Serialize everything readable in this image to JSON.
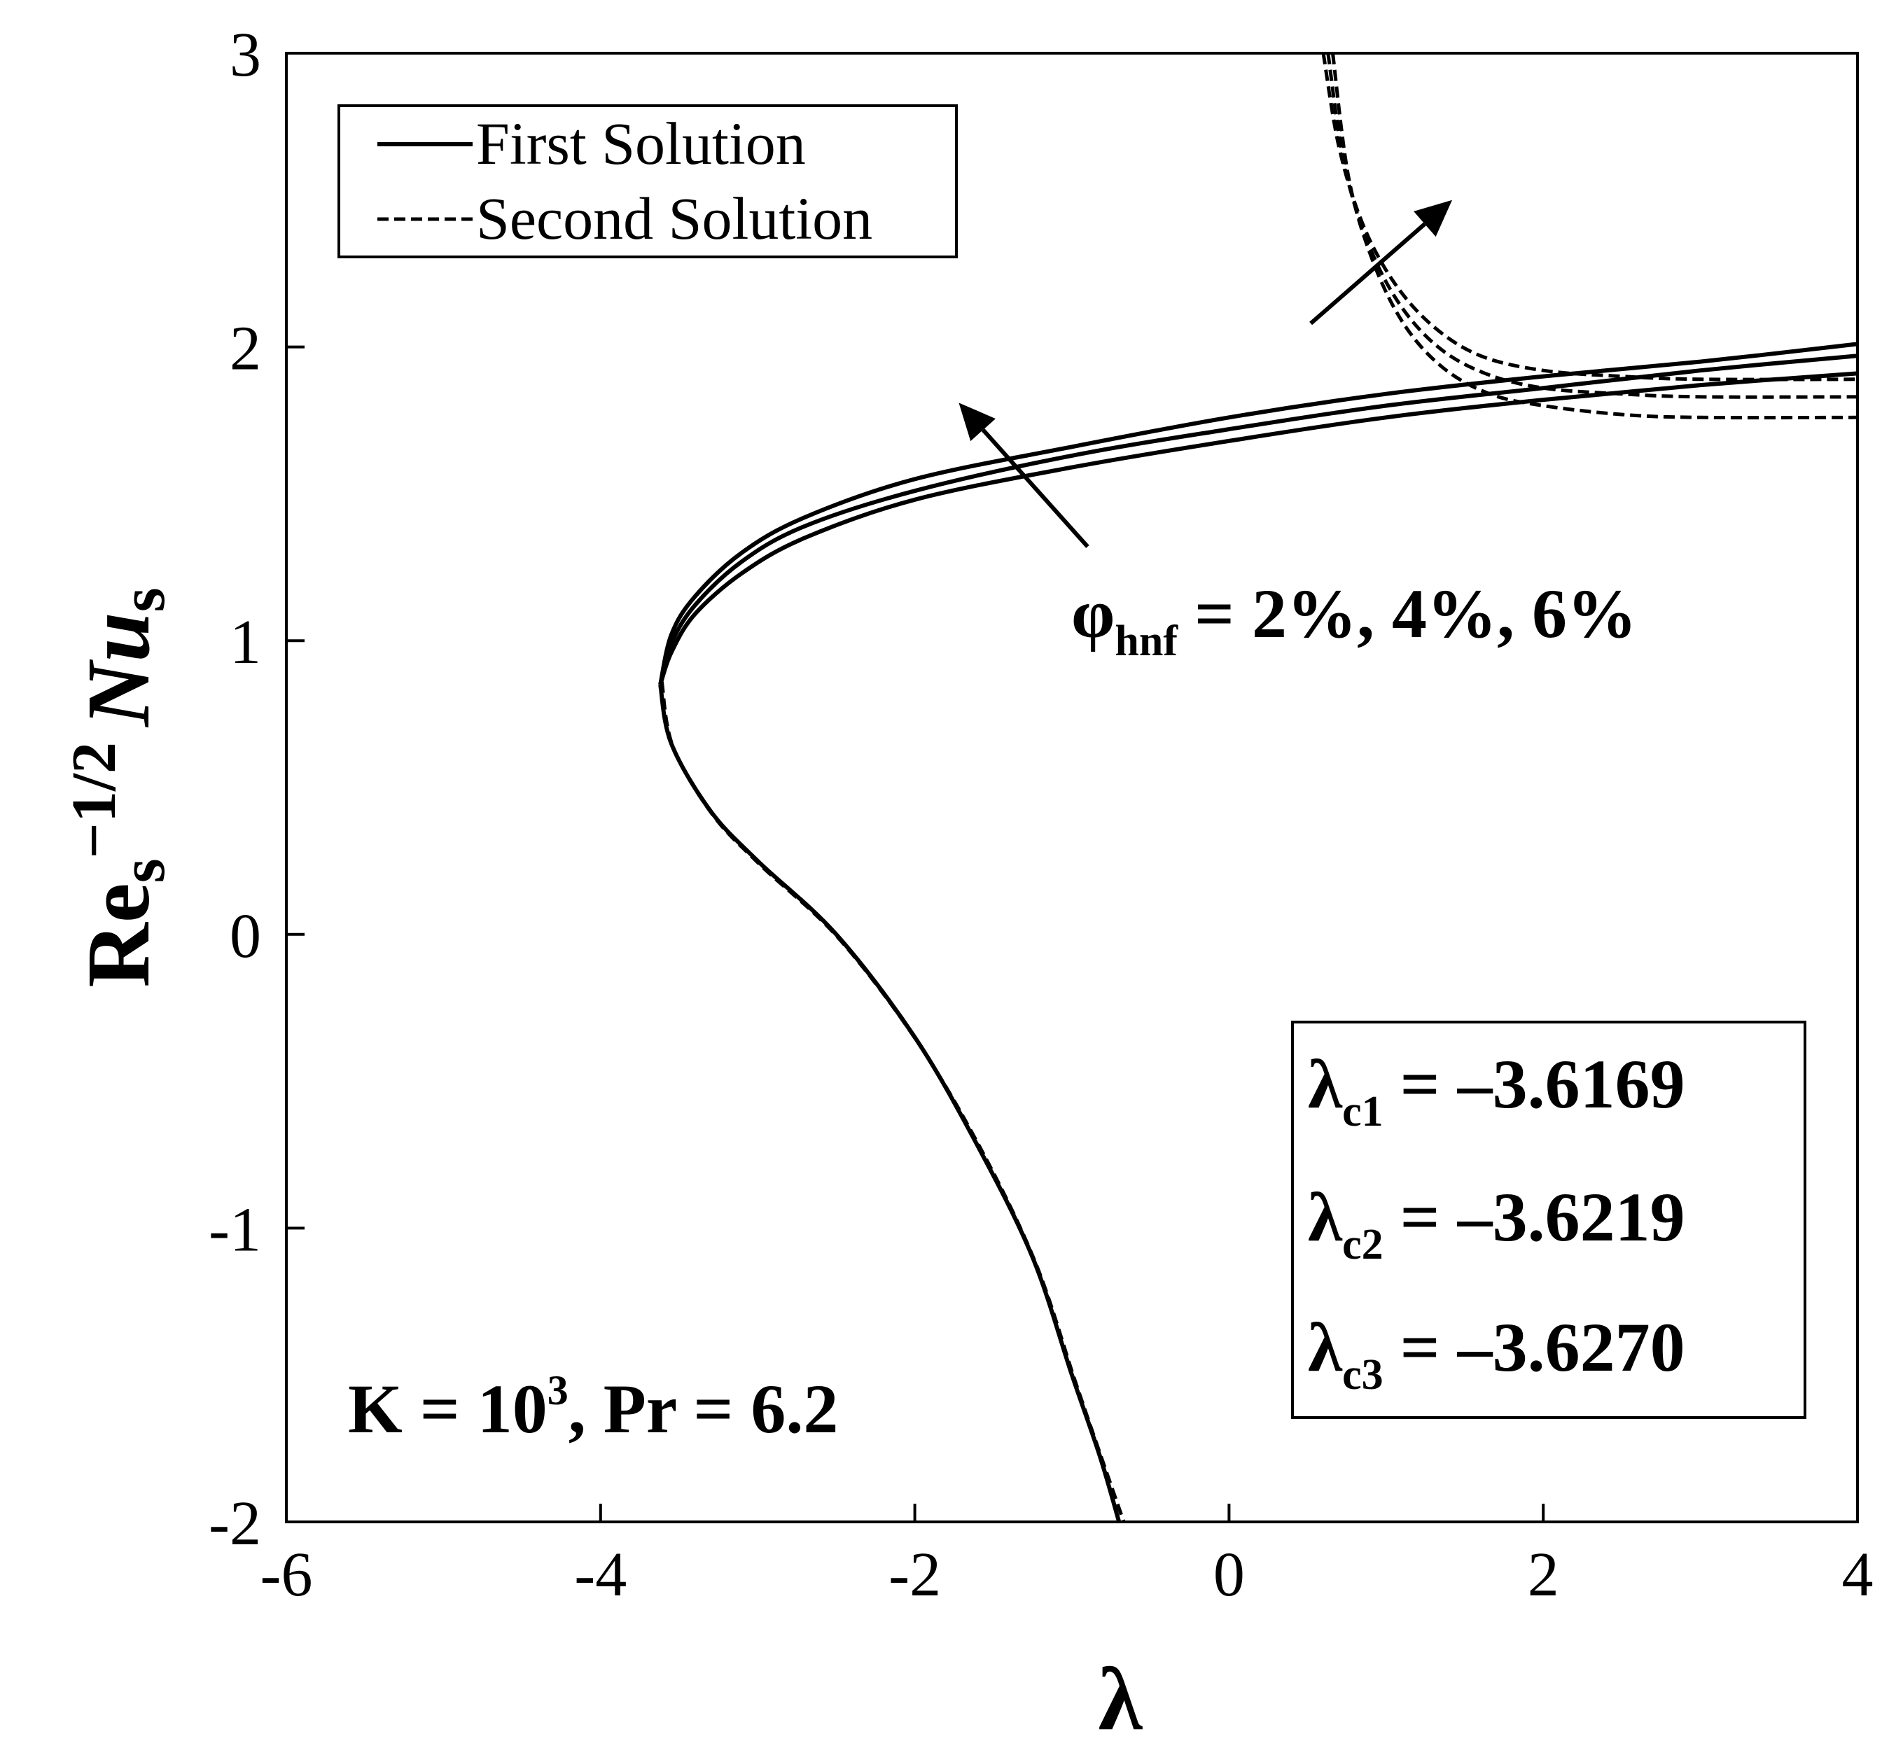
{
  "chart_data": {
    "type": "line",
    "xlabel": "λ",
    "ylabel": {
      "base": "Re",
      "sub1": "s",
      "sup": "−1/2",
      "nu": "Nu",
      "sub2": "s"
    },
    "xlim": [
      -6,
      4
    ],
    "ylim": [
      -2,
      3
    ],
    "x_ticks": [
      "-6",
      "-4",
      "-2",
      "0",
      "2",
      "4"
    ],
    "y_ticks": [
      "-2",
      "-1",
      "0",
      "1",
      "2",
      "3"
    ],
    "grid": false,
    "legend": {
      "position": "top-left",
      "entries": [
        {
          "label": "First Solution",
          "style": "solid"
        },
        {
          "label": "Second Solution",
          "style": "dashed"
        }
      ]
    },
    "series": [
      {
        "branch": "first",
        "style": "solid",
        "points": [
          [
            -3.62,
            0.85
          ],
          [
            -3.55,
            1.02
          ],
          [
            -3.4,
            1.15
          ],
          [
            -3.1,
            1.3
          ],
          [
            -2.7,
            1.42
          ],
          [
            -2.0,
            1.55
          ],
          [
            -1.0,
            1.66
          ],
          [
            0.0,
            1.76
          ],
          [
            1.0,
            1.84
          ],
          [
            2.0,
            1.9
          ],
          [
            3.0,
            1.95
          ],
          [
            4.0,
            2.01
          ]
        ]
      },
      {
        "branch": "first",
        "style": "solid",
        "points": [
          [
            -3.62,
            0.85
          ],
          [
            -3.55,
            0.99
          ],
          [
            -3.4,
            1.12
          ],
          [
            -3.1,
            1.27
          ],
          [
            -2.7,
            1.39
          ],
          [
            -2.0,
            1.51
          ],
          [
            -1.0,
            1.63
          ],
          [
            0.0,
            1.72
          ],
          [
            1.0,
            1.8
          ],
          [
            2.0,
            1.86
          ],
          [
            3.0,
            1.92
          ],
          [
            4.0,
            1.97
          ]
        ]
      },
      {
        "branch": "first",
        "style": "solid",
        "points": [
          [
            -3.62,
            0.85
          ],
          [
            -3.55,
            0.96
          ],
          [
            -3.4,
            1.09
          ],
          [
            -3.1,
            1.23
          ],
          [
            -2.7,
            1.35
          ],
          [
            -2.0,
            1.48
          ],
          [
            -1.0,
            1.59
          ],
          [
            0.0,
            1.68
          ],
          [
            1.0,
            1.76
          ],
          [
            2.0,
            1.82
          ],
          [
            3.0,
            1.87
          ],
          [
            4.0,
            1.91
          ]
        ]
      },
      {
        "branch": "lower",
        "style": "solid",
        "points": [
          [
            -3.62,
            0.85
          ],
          [
            -3.55,
            0.65
          ],
          [
            -3.3,
            0.42
          ],
          [
            -3.0,
            0.25
          ],
          [
            -2.5,
            0.0
          ],
          [
            -2.0,
            -0.35
          ],
          [
            -1.6,
            -0.72
          ],
          [
            -1.25,
            -1.1
          ],
          [
            -1.0,
            -1.5
          ],
          [
            -0.82,
            -1.78
          ],
          [
            -0.7,
            -2.0
          ]
        ]
      },
      {
        "branch": "lower",
        "style": "dashed",
        "points": [
          [
            -3.61,
            0.86
          ],
          [
            -3.54,
            0.64
          ],
          [
            -3.29,
            0.41
          ],
          [
            -2.99,
            0.24
          ],
          [
            -2.49,
            -0.01
          ],
          [
            -1.99,
            -0.36
          ],
          [
            -1.58,
            -0.73
          ],
          [
            -1.23,
            -1.12
          ],
          [
            -0.98,
            -1.52
          ],
          [
            -0.8,
            -1.8
          ],
          [
            -0.67,
            -2.0
          ]
        ]
      },
      {
        "branch": "second",
        "style": "dashed",
        "points": [
          [
            0.6,
            3.0
          ],
          [
            0.7,
            2.68
          ],
          [
            0.85,
            2.42
          ],
          [
            1.05,
            2.22
          ],
          [
            1.3,
            2.07
          ],
          [
            1.6,
            1.97
          ],
          [
            2.0,
            1.92
          ],
          [
            2.5,
            1.9
          ],
          [
            3.0,
            1.89
          ],
          [
            4.0,
            1.89
          ]
        ]
      },
      {
        "branch": "second",
        "style": "dashed",
        "points": [
          [
            0.63,
            3.0
          ],
          [
            0.73,
            2.63
          ],
          [
            0.88,
            2.36
          ],
          [
            1.08,
            2.15
          ],
          [
            1.33,
            2.0
          ],
          [
            1.63,
            1.91
          ],
          [
            2.0,
            1.86
          ],
          [
            2.5,
            1.84
          ],
          [
            3.0,
            1.83
          ],
          [
            4.0,
            1.83
          ]
        ]
      },
      {
        "branch": "second",
        "style": "dashed",
        "points": [
          [
            0.66,
            3.0
          ],
          [
            0.76,
            2.58
          ],
          [
            0.91,
            2.3
          ],
          [
            1.11,
            2.08
          ],
          [
            1.36,
            1.93
          ],
          [
            1.66,
            1.84
          ],
          [
            2.0,
            1.8
          ],
          [
            2.5,
            1.77
          ],
          [
            3.0,
            1.76
          ],
          [
            4.0,
            1.76
          ]
        ]
      }
    ],
    "arrows": [
      {
        "from": [
          -0.9,
          1.32
        ],
        "to": [
          -1.72,
          1.81
        ]
      },
      {
        "from": [
          0.52,
          2.08
        ],
        "to": [
          1.42,
          2.5
        ]
      }
    ],
    "annotations": {
      "phi": {
        "symbol": "φ",
        "sub": "hnf",
        "text": "= 2%, 4%, 6%"
      },
      "kpr": {
        "k": "K = 10",
        "kexp": "3",
        "rest": ", Pr = 6.2"
      },
      "critical": [
        {
          "symbol": "λ",
          "sub": "c1",
          "text": "= –3.6169"
        },
        {
          "symbol": "λ",
          "sub": "c2",
          "text": "= –3.6219"
        },
        {
          "symbol": "λ",
          "sub": "c3",
          "text": "= –3.6270"
        }
      ]
    }
  }
}
